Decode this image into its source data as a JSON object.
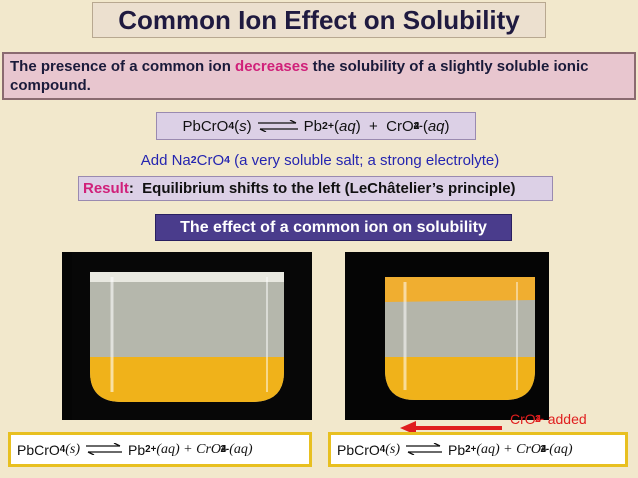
{
  "title": "Common Ion Effect on Solubility",
  "statement": [
    "The presence of a common ion ",
    "decreases",
    " the solubility of a slightly soluble ionic compound."
  ],
  "equation": [
    "PbCrO",
    "4",
    "(",
    "s",
    ")",
    "Pb",
    "2+",
    "(",
    "aq",
    ")  +  CrO",
    "4",
    "2-",
    "(",
    "aq",
    ")"
  ],
  "addition": [
    "Add Na",
    "2",
    "CrO",
    "4",
    " (a very soluble salt; a strong electrolyte)"
  ],
  "result": [
    "Result",
    ":  Equilibrium shifts to the left (LeChâtelier’s principle)"
  ],
  "caption": "The effect of a common ion on solubility",
  "added_label": [
    "CrO",
    "4",
    "2-",
    " added"
  ],
  "left_equation": [
    "PbCrO",
    "4",
    "(",
    "s",
    ")",
    "Pb",
    "2+",
    "(",
    "aq",
    ") + CrO",
    "4",
    "2-",
    "(",
    "aq",
    ")"
  ],
  "right_equation": [
    "PbCrO",
    "4",
    "(",
    "s",
    ")",
    "Pb",
    "2+",
    "(",
    "aq",
    ") + CrO",
    "4",
    "2-",
    "(",
    "aq",
    ")"
  ]
}
